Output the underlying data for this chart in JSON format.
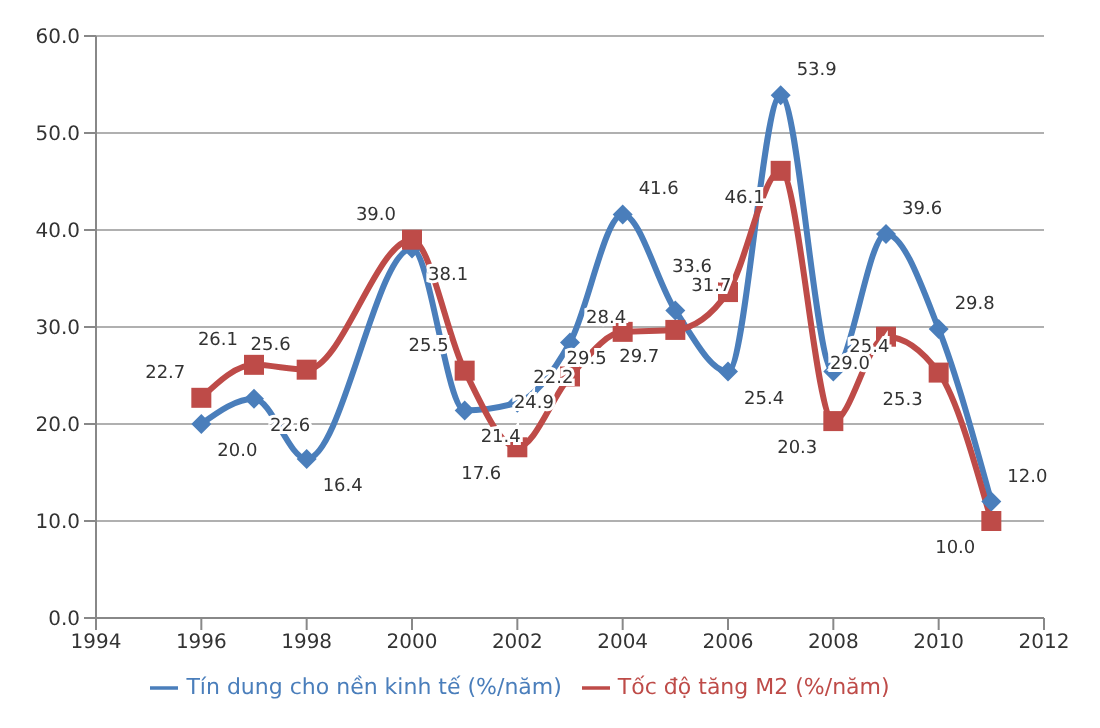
{
  "chart_data": {
    "type": "line",
    "x": [
      1996,
      1997,
      1998,
      2000,
      2001,
      2002,
      2003,
      2004,
      2005,
      2006,
      2007,
      2008,
      2009,
      2010,
      2011
    ],
    "series": [
      {
        "name": "Tín dung cho nền kinh tế (%/năm)",
        "color": "#4a7ebb",
        "marker": "diamond",
        "values": [
          20.0,
          22.6,
          16.4,
          38.1,
          21.4,
          22.2,
          28.4,
          41.6,
          31.7,
          25.4,
          53.9,
          25.4,
          39.6,
          29.8,
          12.0
        ],
        "value_labels": [
          "20.0",
          "22.6",
          "16.4",
          "38.1",
          "21.4",
          "22.2",
          "28.4",
          "41.6",
          "31.7",
          "25.4",
          "53.9",
          "25.4",
          "39.6",
          "29.8",
          "12.0"
        ]
      },
      {
        "name": "Tốc độ tăng M2 (%/năm)",
        "color": "#be4b48",
        "marker": "square",
        "values": [
          22.7,
          26.1,
          25.6,
          39.0,
          25.5,
          17.6,
          24.9,
          29.5,
          29.7,
          33.6,
          46.1,
          20.3,
          29.0,
          25.3,
          10.0
        ],
        "value_labels": [
          "22.7",
          "26.1",
          "25.6",
          "39.0",
          "25.5",
          "17.6",
          "24.9",
          "29.5",
          "29.7",
          "33.6",
          "46.1",
          "20.3",
          "29.0",
          "25.3",
          "10.0"
        ]
      }
    ],
    "xlim": [
      1994,
      2012
    ],
    "xticks": [
      1994,
      1996,
      1998,
      2000,
      2002,
      2004,
      2006,
      2008,
      2010,
      2012
    ],
    "ylim": [
      0,
      60
    ],
    "yticks": [
      {
        "value": 0,
        "label": "0.0"
      },
      {
        "value": 10,
        "label": "10.0"
      },
      {
        "value": 20,
        "label": "20.0"
      },
      {
        "value": 30,
        "label": "30.0"
      },
      {
        "value": 40,
        "label": "40.0"
      },
      {
        "value": 50,
        "label": "50.0"
      },
      {
        "value": 60,
        "label": "60.0"
      }
    ],
    "grid": "y",
    "legend": "bottom"
  }
}
